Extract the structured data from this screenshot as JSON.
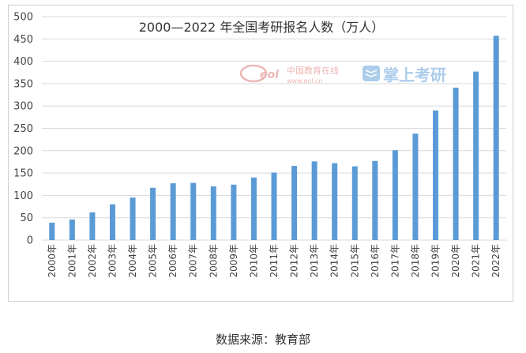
{
  "chart_data": {
    "type": "bar",
    "title": "2000—2022 年全国考研报名人数（万人）",
    "categories": [
      "2000年",
      "2001年",
      "2002年",
      "2003年",
      "2004年",
      "2005年",
      "2006年",
      "2007年",
      "2008年",
      "2009年",
      "2010年",
      "2011年",
      "2012年",
      "2013年",
      "2014年",
      "2015年",
      "2016年",
      "2017年",
      "2018年",
      "2019年",
      "2020年",
      "2021年",
      "2022年"
    ],
    "values": [
      39,
      46,
      62,
      80,
      95,
      117,
      127,
      128,
      120,
      124,
      140,
      151,
      166,
      176,
      172,
      165,
      177,
      201,
      238,
      290,
      341,
      377,
      457
    ],
    "ylim": [
      0,
      500
    ],
    "yticks": [
      0,
      50,
      100,
      150,
      200,
      250,
      300,
      350,
      400,
      450,
      500
    ],
    "grid": true,
    "bar_color": "#5b9bd5",
    "xlabel": "",
    "ylabel": ""
  },
  "watermark": {
    "eol_logo": "eol",
    "eol_cn": "中国教育在线",
    "eol_url": "www.eol.cn",
    "kaoyan_icon": "book-icon",
    "kaoyan_text": "掌上考研"
  },
  "source": "数据来源：教育部"
}
